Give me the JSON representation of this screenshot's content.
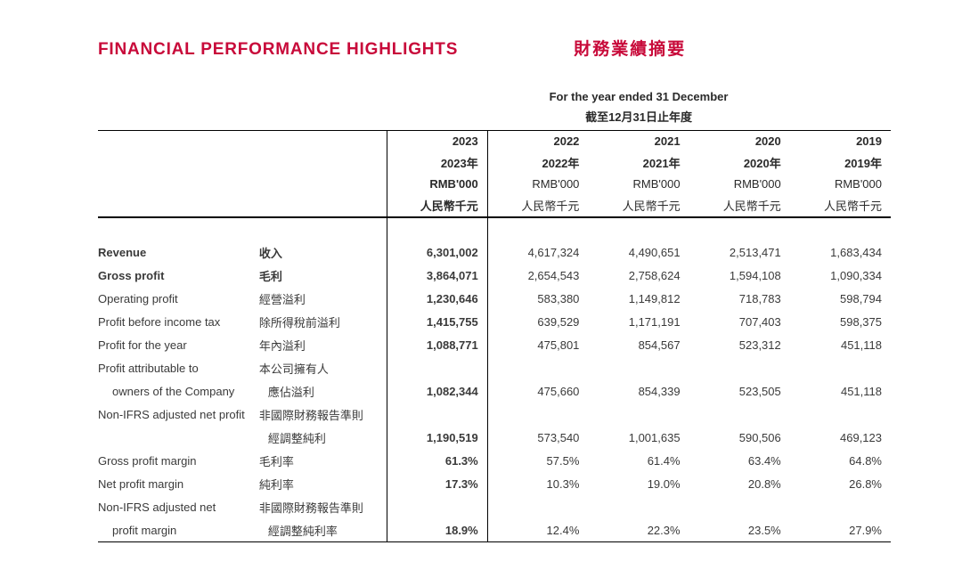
{
  "title": {
    "en": "FINANCIAL PERFORMANCE HIGHLIGHTS",
    "zh": "財務業績摘要"
  },
  "super_header": {
    "en": "For the year ended 31 December",
    "zh": "截至12月31日止年度"
  },
  "col_headers": {
    "years": [
      "2023",
      "2022",
      "2021",
      "2020",
      "2019"
    ],
    "years_zh": [
      "2023年",
      "2022年",
      "2021年",
      "2020年",
      "2019年"
    ],
    "unit_en": [
      "RMB'000",
      "RMB'000",
      "RMB'000",
      "RMB'000",
      "RMB'000"
    ],
    "unit_zh": [
      "人民幣千元",
      "人民幣千元",
      "人民幣千元",
      "人民幣千元",
      "人民幣千元"
    ]
  },
  "rows": [
    {
      "en": "Revenue",
      "zh": "收入",
      "bold_label": true,
      "vals": [
        "6,301,002",
        "4,617,324",
        "4,490,651",
        "2,513,471",
        "1,683,434"
      ]
    },
    {
      "en": "Gross profit",
      "zh": "毛利",
      "bold_label": true,
      "vals": [
        "3,864,071",
        "2,654,543",
        "2,758,624",
        "1,594,108",
        "1,090,334"
      ]
    },
    {
      "en": "Operating profit",
      "zh": "經營溢利",
      "vals": [
        "1,230,646",
        "583,380",
        "1,149,812",
        "718,783",
        "598,794"
      ]
    },
    {
      "en": "Profit before income tax",
      "zh": "除所得稅前溢利",
      "vals": [
        "1,415,755",
        "639,529",
        "1,171,191",
        "707,403",
        "598,375"
      ]
    },
    {
      "en": "Profit for the year",
      "zh": "年內溢利",
      "vals": [
        "1,088,771",
        "475,801",
        "854,567",
        "523,312",
        "451,118"
      ]
    },
    {
      "en": "Profit attributable to",
      "zh": "本公司擁有人",
      "vals": null
    },
    {
      "en": "owners of the Company",
      "zh": "應佔溢利",
      "indent": true,
      "vals": [
        "1,082,344",
        "475,660",
        "854,339",
        "523,505",
        "451,118"
      ]
    },
    {
      "en": "Non-IFRS adjusted net profit",
      "zh": "非國際財務報告準則",
      "vals": null
    },
    {
      "en": "",
      "zh": "經調整純利",
      "indent": true,
      "vals": [
        "1,190,519",
        "573,540",
        "1,001,635",
        "590,506",
        "469,123"
      ]
    },
    {
      "en": "Gross profit margin",
      "zh": "毛利率",
      "vals": [
        "61.3%",
        "57.5%",
        "61.4%",
        "63.4%",
        "64.8%"
      ]
    },
    {
      "en": "Net profit margin",
      "zh": "純利率",
      "vals": [
        "17.3%",
        "10.3%",
        "19.0%",
        "20.8%",
        "26.8%"
      ]
    },
    {
      "en": "Non-IFRS adjusted net",
      "zh": "非國際財務報告準則",
      "vals": null
    },
    {
      "en": "profit margin",
      "zh": "經調整純利率",
      "indent": true,
      "vals": [
        "18.9%",
        "12.4%",
        "22.3%",
        "23.5%",
        "27.9%"
      ]
    }
  ],
  "colors": {
    "accent": "#c80a3a",
    "text": "#3a3a3a",
    "border": "#000000",
    "bg": "#ffffff"
  }
}
